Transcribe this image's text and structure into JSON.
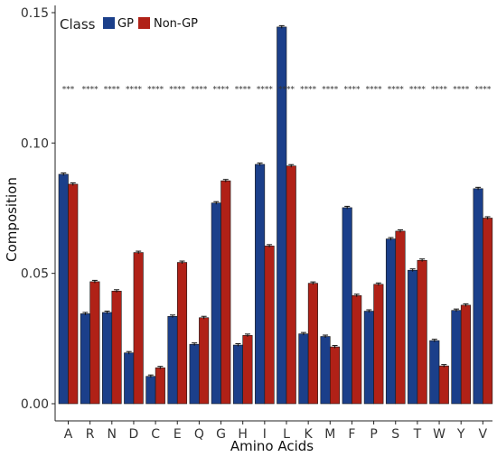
{
  "chart_data": {
    "type": "bar",
    "xlabel": "Amino Acids",
    "ylabel": "Composition",
    "ylim": [
      0,
      0.15
    ],
    "yticks": [
      "0.00",
      "0.05",
      "0.10",
      "0.15"
    ],
    "categories": [
      "A",
      "R",
      "N",
      "D",
      "C",
      "E",
      "Q",
      "G",
      "H",
      "I",
      "L",
      "K",
      "M",
      "F",
      "P",
      "S",
      "T",
      "W",
      "Y",
      "V"
    ],
    "series": [
      {
        "name": "GP",
        "color": "#1b3f8a",
        "values": [
          0.088,
          0.0345,
          0.035,
          0.0195,
          0.0105,
          0.0335,
          0.0228,
          0.077,
          0.0225,
          0.0918,
          0.1445,
          0.0268,
          0.0258,
          0.0752,
          0.0355,
          0.0632,
          0.0512,
          0.0242,
          0.0358,
          0.0825
        ]
      },
      {
        "name": "Non-GP",
        "color": "#b02117",
        "values": [
          0.0842,
          0.0468,
          0.0432,
          0.058,
          0.0138,
          0.0542,
          0.033,
          0.0855,
          0.0262,
          0.0605,
          0.0912,
          0.0462,
          0.0218,
          0.0415,
          0.0458,
          0.0662,
          0.055,
          0.0145,
          0.0378,
          0.0712
        ]
      }
    ],
    "significance": [
      "***",
      "****",
      "****",
      "****",
      "****",
      "****",
      "****",
      "****",
      "****",
      "****",
      "****",
      "****",
      "****",
      "****",
      "****",
      "****",
      "****",
      "****",
      "****",
      "****"
    ],
    "significance_y": 0.121,
    "legend": {
      "title": "Class",
      "placement": "top-left"
    },
    "grid": false
  }
}
